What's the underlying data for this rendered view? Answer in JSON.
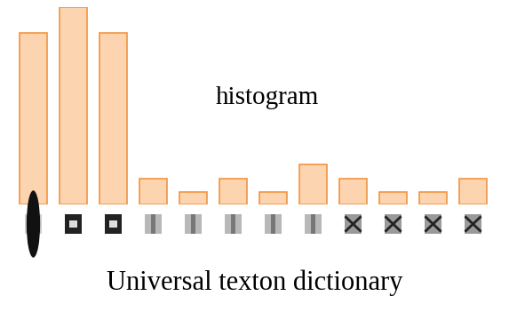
{
  "chart_data": {
    "type": "bar",
    "annotation": "histogram",
    "x_label": "Universal texton dictionary",
    "categories": [
      null,
      null,
      null,
      null,
      null,
      null,
      null,
      null,
      null,
      null,
      null,
      null
    ],
    "values": [
      193,
      222,
      193,
      29,
      14,
      29,
      14,
      45,
      29,
      14,
      14,
      29
    ],
    "color": "#fdd4b0",
    "ylim": [
      0,
      222
    ],
    "tick_labels": false
  }
}
